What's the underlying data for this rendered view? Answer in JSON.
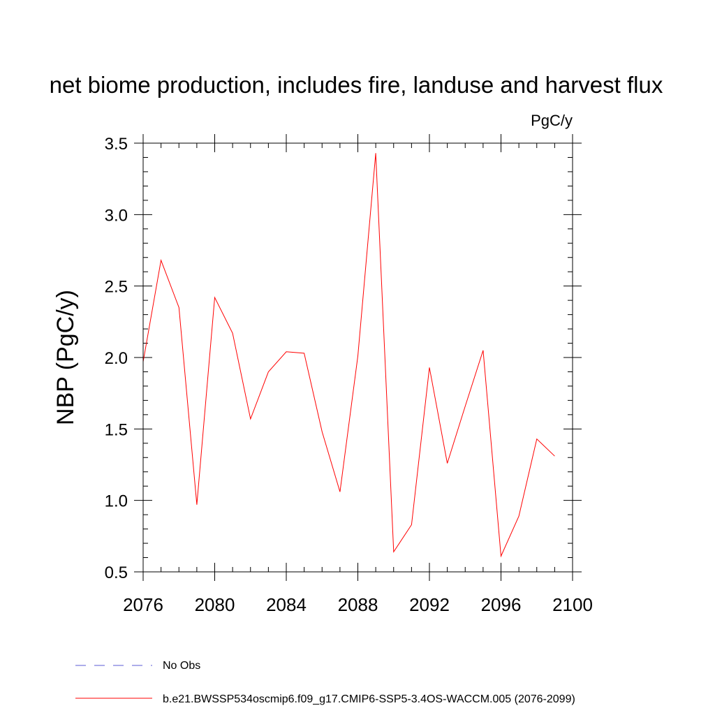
{
  "chart_data": {
    "type": "line",
    "title": "net biome production, includes fire, landuse and harvest flux",
    "units_label": "PgC/y",
    "xlabel": "",
    "ylabel": "NBP  (PgC/y)",
    "xlim": [
      2076,
      2100
    ],
    "ylim": [
      0.5,
      3.5
    ],
    "x_ticks": [
      2076,
      2080,
      2084,
      2088,
      2092,
      2096,
      2100
    ],
    "x_tick_labels": [
      "2076",
      "2080",
      "2084",
      "2088",
      "2092",
      "2096",
      "2100"
    ],
    "x_minor_step": 1,
    "y_ticks": [
      0.5,
      1.0,
      1.5,
      2.0,
      2.5,
      3.0,
      3.5
    ],
    "y_tick_labels": [
      "0.5",
      "1.0",
      "1.5",
      "2.0",
      "2.5",
      "3.0",
      "3.5"
    ],
    "y_minor_step": 0.1,
    "grid": false,
    "legend_position": "bottom-left",
    "series": [
      {
        "name": "b.e21.BWSSP534oscmip6.f09_g17.CMIP6-SSP5-3.4OS-WACCM.005 (2076-2099)",
        "color": "#ff0000",
        "dash": "solid",
        "x": [
          2076,
          2077,
          2078,
          2079,
          2080,
          2081,
          2082,
          2083,
          2084,
          2085,
          2086,
          2087,
          2088,
          2089,
          2090,
          2091,
          2092,
          2093,
          2094,
          2095,
          2096,
          2097,
          2098,
          2099
        ],
        "values": [
          1.97,
          2.68,
          2.35,
          0.97,
          2.42,
          2.17,
          1.57,
          1.9,
          2.04,
          2.03,
          1.48,
          1.06,
          2.01,
          3.43,
          0.64,
          0.83,
          1.93,
          1.26,
          1.66,
          2.05,
          0.61,
          0.89,
          1.43,
          1.31
        ]
      }
    ],
    "legend": [
      {
        "label": "No Obs",
        "color": "#5b5bd6",
        "dash": "dashed"
      },
      {
        "label": "b.e21.BWSSP534oscmip6.f09_g17.CMIP6-SSP5-3.4OS-WACCM.005 (2076-2099)",
        "color": "#ff0000",
        "dash": "solid"
      }
    ]
  }
}
